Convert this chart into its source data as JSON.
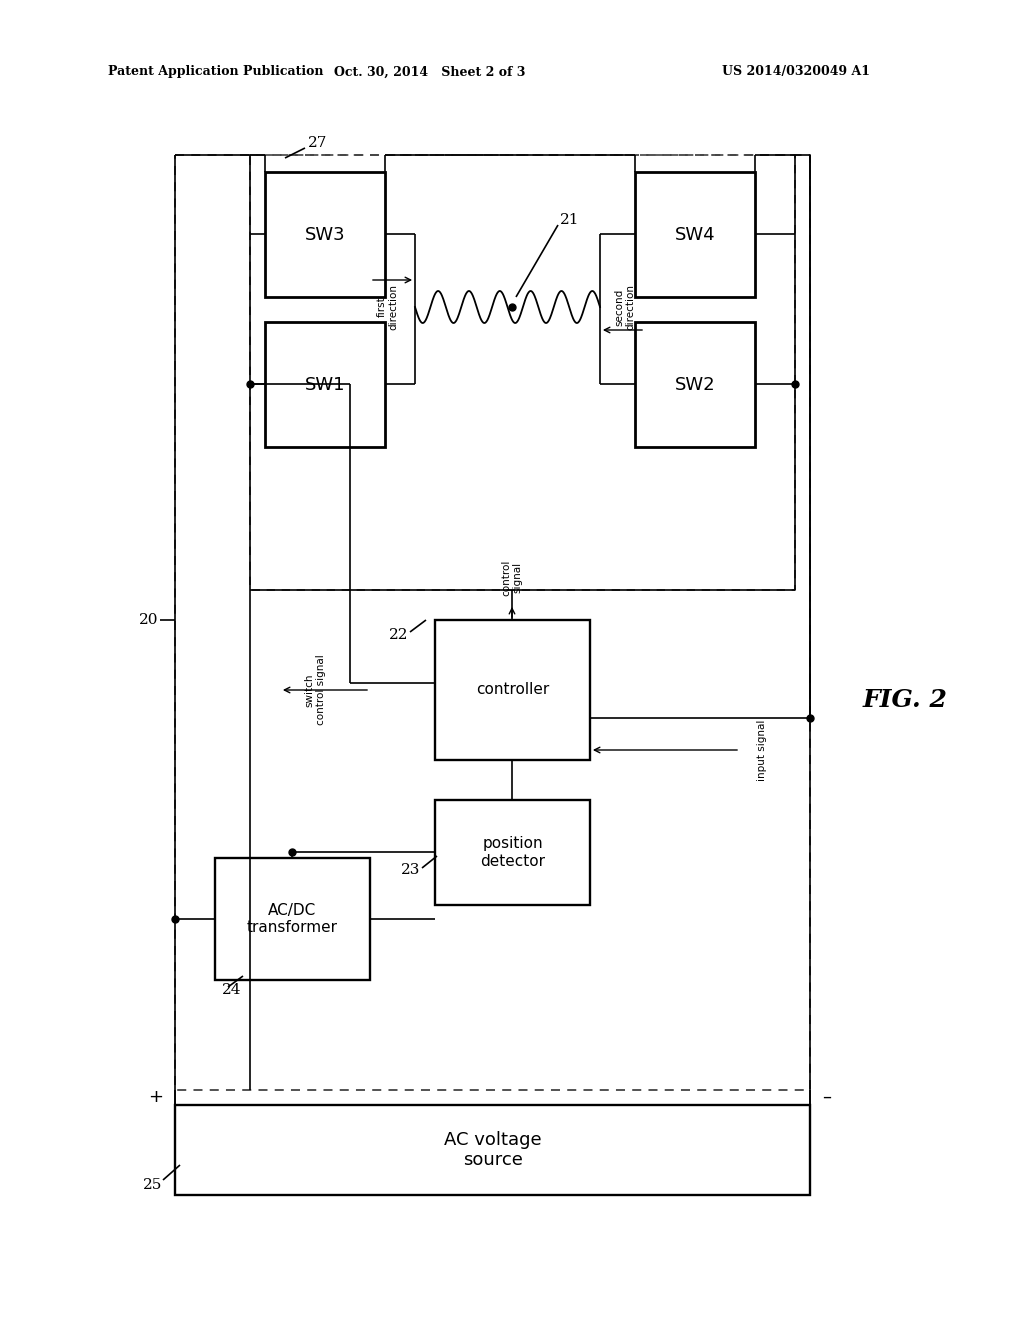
{
  "bg": "#ffffff",
  "header_left": "Patent Application Publication",
  "header_center": "Oct. 30, 2014   Sheet 2 of 3",
  "header_right": "US 2014/0320049 A1",
  "fig_label": "FIG. 2",
  "lbl_20": "20",
  "lbl_21": "21",
  "lbl_22": "22",
  "lbl_23": "23",
  "lbl_24": "24",
  "lbl_25": "25",
  "lbl_27": "27",
  "plus": "+",
  "minus": "–"
}
